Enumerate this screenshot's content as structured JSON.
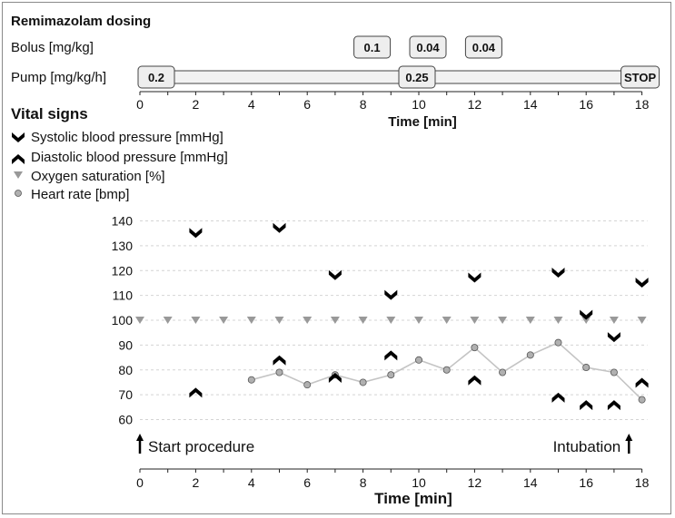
{
  "dosing": {
    "title": "Remimazolam dosing",
    "bolus_label": "Bolus [mg/kg]",
    "pump_label": "Pump [mg/kg/h]",
    "boluses": [
      {
        "time": 8,
        "value": "0.1"
      },
      {
        "time": 10,
        "value": "0.04"
      },
      {
        "time": 12,
        "value": "0.04"
      }
    ],
    "pump": [
      {
        "time": 0,
        "value": "0.2"
      },
      {
        "time": 10,
        "value": "0.25"
      },
      {
        "time": 18,
        "value": "STOP"
      }
    ],
    "xticks": [
      0,
      2,
      4,
      6,
      8,
      10,
      12,
      14,
      16,
      18
    ],
    "xlabel": "Time [min]"
  },
  "vitals": {
    "title": "Vital signs",
    "legend": [
      {
        "key": "sbp",
        "label": "Systolic blood pressure [mmHg]"
      },
      {
        "key": "dbp",
        "label": "Diastolic blood pressure [mmHg]"
      },
      {
        "key": "spo2",
        "label": "Oxygen saturation [%]"
      },
      {
        "key": "hr",
        "label": "Heart rate [bmp]"
      }
    ],
    "annotations": {
      "start": "Start procedure",
      "intubation": "Intubation"
    }
  },
  "chart_data": {
    "type": "scatter",
    "xlabel": "Time [min]",
    "ylabel": "",
    "xlim": [
      0,
      18
    ],
    "ylim": [
      55,
      140
    ],
    "xticks": [
      0,
      2,
      4,
      6,
      8,
      10,
      12,
      14,
      16,
      18
    ],
    "yticks": [
      60,
      70,
      80,
      90,
      100,
      110,
      120,
      130,
      140
    ],
    "grid": true,
    "series": [
      {
        "key": "sbp",
        "name": "Systolic blood pressure [mmHg]",
        "marker": "chevron-down",
        "color": "#000000",
        "points": [
          [
            2,
            135
          ],
          [
            5,
            137
          ],
          [
            7,
            118
          ],
          [
            9,
            110
          ],
          [
            12,
            117
          ],
          [
            15,
            119
          ],
          [
            16,
            102
          ],
          [
            17,
            93
          ],
          [
            18,
            115
          ]
        ]
      },
      {
        "key": "dbp",
        "name": "Diastolic blood pressure [mmHg]",
        "marker": "chevron-up",
        "color": "#000000",
        "points": [
          [
            2,
            71
          ],
          [
            5,
            84
          ],
          [
            7,
            77
          ],
          [
            9,
            86
          ],
          [
            12,
            76
          ],
          [
            15,
            69
          ],
          [
            16,
            66
          ],
          [
            17,
            66
          ],
          [
            18,
            75
          ]
        ]
      },
      {
        "key": "spo2",
        "name": "Oxygen saturation [%]",
        "marker": "triangle-down",
        "color": "#999999",
        "points": [
          [
            0,
            100
          ],
          [
            1,
            100
          ],
          [
            2,
            100
          ],
          [
            3,
            100
          ],
          [
            4,
            100
          ],
          [
            5,
            100
          ],
          [
            6,
            100
          ],
          [
            7,
            100
          ],
          [
            8,
            100
          ],
          [
            9,
            100
          ],
          [
            10,
            100
          ],
          [
            11,
            100
          ],
          [
            12,
            100
          ],
          [
            13,
            100
          ],
          [
            14,
            100
          ],
          [
            15,
            100
          ],
          [
            16,
            100
          ],
          [
            17,
            100
          ],
          [
            18,
            100
          ]
        ]
      },
      {
        "key": "hr",
        "name": "Heart rate [bmp]",
        "marker": "circle",
        "color": "#b0b0b0",
        "points": [
          [
            4,
            76
          ],
          [
            5,
            79
          ],
          [
            6,
            74
          ],
          [
            7,
            78
          ],
          [
            8,
            75
          ],
          [
            9,
            78
          ],
          [
            10,
            84
          ],
          [
            11,
            80
          ],
          [
            12,
            89
          ],
          [
            13,
            79
          ],
          [
            14,
            86
          ],
          [
            15,
            91
          ],
          [
            16,
            81
          ],
          [
            17,
            79
          ],
          [
            18,
            68
          ]
        ]
      }
    ],
    "annotations": [
      {
        "x": 0,
        "text": "Start procedure",
        "arrow": "up"
      },
      {
        "x": 17.5,
        "text": "Intubation",
        "arrow": "up"
      }
    ]
  }
}
